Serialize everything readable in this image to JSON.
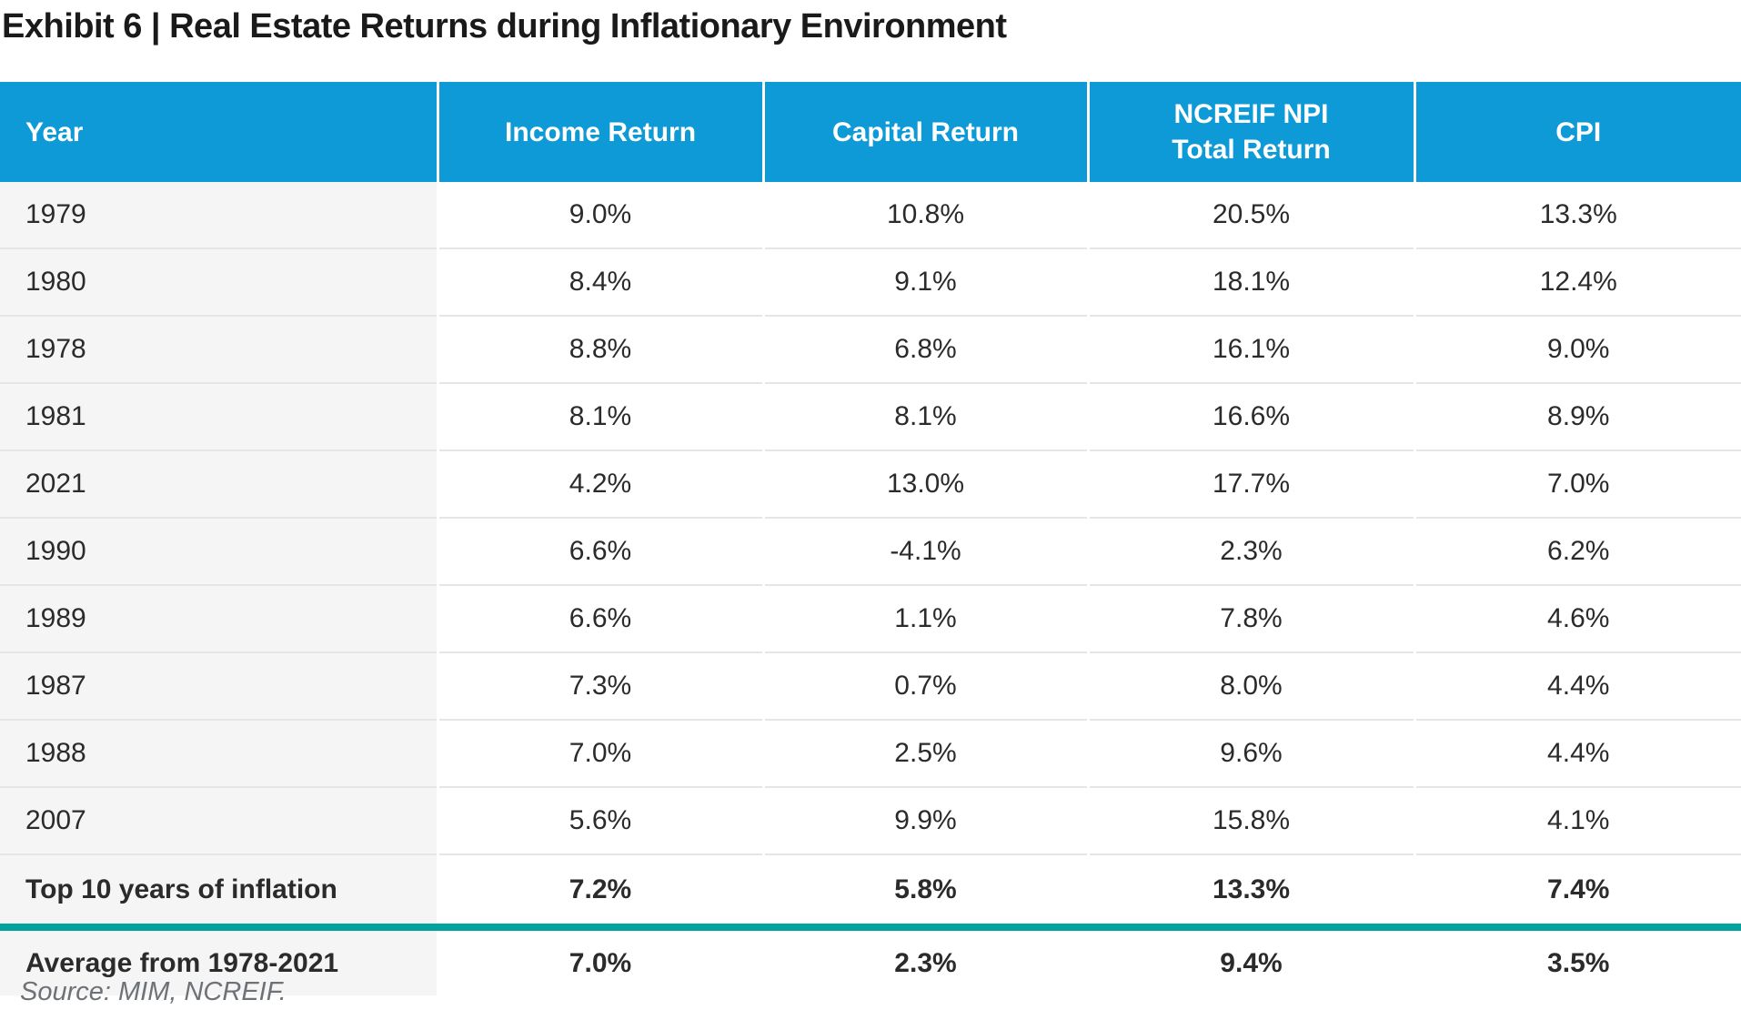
{
  "chart_data": {
    "type": "table",
    "title": "Exhibit 6 | Real Estate Returns during Inflationary Environment",
    "source": "Source: MIM, NCREIF.",
    "columns": [
      {
        "label": "Year"
      },
      {
        "label": "Income Return"
      },
      {
        "label": "Capital Return"
      },
      {
        "label": "NCREIF NPI",
        "label2": "Total Return"
      },
      {
        "label": "CPI"
      }
    ],
    "rows": [
      {
        "year": "1979",
        "values": [
          "9.0%",
          "10.8%",
          "20.5%",
          "13.3%"
        ]
      },
      {
        "year": "1980",
        "values": [
          "8.4%",
          "9.1%",
          "18.1%",
          "12.4%"
        ]
      },
      {
        "year": "1978",
        "values": [
          "8.8%",
          "6.8%",
          "16.1%",
          "9.0%"
        ]
      },
      {
        "year": "1981",
        "values": [
          "8.1%",
          "8.1%",
          "16.6%",
          "8.9%"
        ]
      },
      {
        "year": "2021",
        "values": [
          "4.2%",
          "13.0%",
          "17.7%",
          "7.0%"
        ]
      },
      {
        "year": "1990",
        "values": [
          "6.6%",
          "-4.1%",
          "2.3%",
          "6.2%"
        ]
      },
      {
        "year": "1989",
        "values": [
          "6.6%",
          "1.1%",
          "7.8%",
          "4.6%"
        ]
      },
      {
        "year": "1987",
        "values": [
          "7.3%",
          "0.7%",
          "8.0%",
          "4.4%"
        ]
      },
      {
        "year": "1988",
        "values": [
          "7.0%",
          "2.5%",
          "9.6%",
          "4.4%"
        ]
      },
      {
        "year": "2007",
        "values": [
          "5.6%",
          "9.9%",
          "15.8%",
          "4.1%"
        ]
      }
    ],
    "summary_rows": [
      {
        "label": "Top 10 years of inflation",
        "values": [
          "7.2%",
          "5.8%",
          "13.3%",
          "7.4%"
        ]
      },
      {
        "label": "Average from 1978-2021",
        "values": [
          "7.0%",
          "2.3%",
          "9.4%",
          "3.5%"
        ]
      }
    ]
  },
  "colors": {
    "header_bg": "#0E9AD6",
    "header_text": "#FFFFFF",
    "year_col_bg": "#F5F5F5",
    "divider": "#E5E5E5",
    "teal": "#00A49C",
    "text": "#2B2B2B",
    "title_text": "#1A1A1A",
    "source_text": "#6E7276"
  }
}
